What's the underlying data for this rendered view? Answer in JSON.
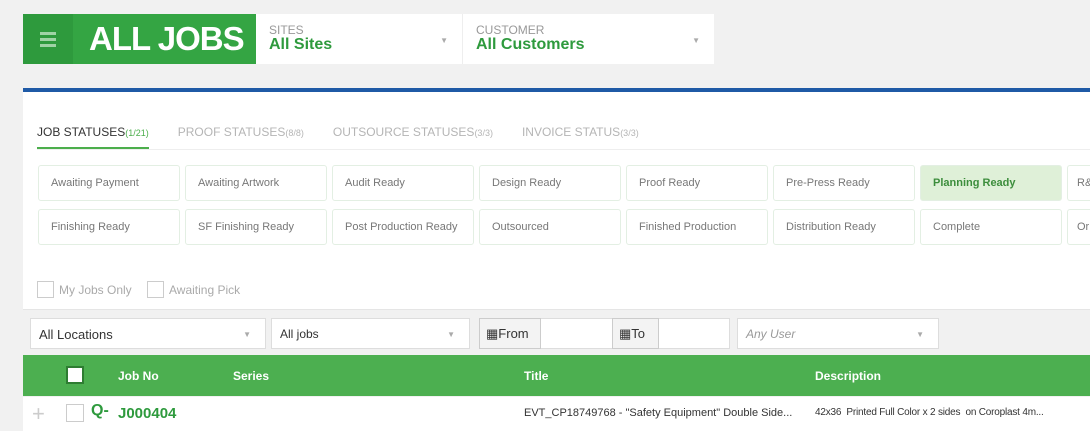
{
  "header": {
    "title": "ALL JOBS",
    "sites": {
      "label": "SITES",
      "value": "All Sites"
    },
    "customer": {
      "label": "CUSTOMER",
      "value": "All Customers"
    }
  },
  "tabs": [
    {
      "label": "JOB STATUSES",
      "count": "(1/21)",
      "active": true
    },
    {
      "label": "PROOF STATUSES",
      "count": "(8/8)"
    },
    {
      "label": "OUTSOURCE STATUSES",
      "count": "(3/3)"
    },
    {
      "label": "INVOICE STATUS",
      "count": "(3/3)"
    }
  ],
  "statuses_row1": [
    "Awaiting Payment",
    "Awaiting Artwork",
    "Audit Ready",
    "Design Ready",
    "Proof Ready",
    "Pre-Press Ready",
    "Planning Ready",
    "R&"
  ],
  "statuses_row2": [
    "Finishing Ready",
    "SF Finishing Ready",
    "Post Production Ready",
    "Outsourced",
    "Finished Production",
    "Distribution Ready",
    "Complete",
    "Or"
  ],
  "selected_status": "Planning Ready",
  "checkboxes": {
    "my_jobs": "My Jobs Only",
    "awaiting_pick": "Awaiting Pick"
  },
  "filters": {
    "location": "All Locations",
    "jobs": "All jobs",
    "from": "From",
    "to": "To",
    "user_placeholder": "Any User"
  },
  "table": {
    "columns": [
      "Job No",
      "Series",
      "Title",
      "Description"
    ],
    "rows": [
      {
        "job_no": "J000404",
        "series": "",
        "title": "EVT_CP18749768 - \"Safety Equipment\" Double Side...",
        "description": "42x36  Printed Full Color x 2 sides  on Coroplast 4m..."
      }
    ]
  },
  "colors": {
    "brand_green": "#34a543",
    "header_green": "#4caf50",
    "accent_blue": "#1f5aa6",
    "selected_bg": "#dff0d8"
  }
}
